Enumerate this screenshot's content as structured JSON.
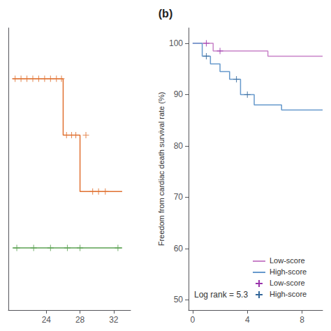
{
  "chart_data": [
    {
      "type": "line",
      "xlim": [
        19.5,
        34
      ],
      "ylim": [
        0.0,
        1.0
      ],
      "xticks": [
        24,
        28,
        32
      ],
      "tick_labels": "x",
      "grid": false,
      "series": [
        {
          "type": "step",
          "color": "#E07030",
          "x": [
            20,
            26,
            26,
            28,
            28,
            33
          ],
          "values": [
            0.82,
            0.82,
            0.62,
            0.62,
            0.42,
            0.42
          ]
        },
        {
          "type": "scatter",
          "marker": "plus",
          "color": "#E07030",
          "x": [
            20.3,
            21.0,
            21.7,
            22.4,
            23.1,
            23.8,
            24.5,
            25.2,
            25.8,
            26.4,
            27.0,
            27.5,
            28.7,
            29.5,
            30.2,
            31.0
          ],
          "values": [
            0.82,
            0.82,
            0.82,
            0.82,
            0.82,
            0.82,
            0.82,
            0.82,
            0.82,
            0.62,
            0.62,
            0.62,
            0.62,
            0.42,
            0.42,
            0.42
          ]
        },
        {
          "type": "line",
          "color": "#5aA050",
          "x": [
            20,
            33
          ],
          "values": [
            0.22,
            0.22
          ]
        },
        {
          "type": "scatter",
          "marker": "plus",
          "color": "#5aA050",
          "x": [
            20.5,
            22.5,
            24.5,
            26.5,
            28.0,
            32.5
          ],
          "values": [
            0.22,
            0.22,
            0.22,
            0.22,
            0.22,
            0.22
          ]
        }
      ]
    },
    {
      "type": "line",
      "title": "(b)",
      "ylabel": "Freedom from cardiac death survival rate (%)",
      "xlim": [
        -0.3,
        9.5
      ],
      "ylim": [
        48,
        103
      ],
      "xticks": [
        0,
        4,
        8
      ],
      "yticks": [
        50,
        60,
        70,
        80,
        90,
        100
      ],
      "grid": false,
      "legend": "lower right",
      "annotations": [
        "Log rank = 5.3"
      ],
      "series": [
        {
          "name": "Low-score",
          "type": "step",
          "color": "#c882c8",
          "x": [
            0,
            0,
            1.5,
            1.5,
            5.5,
            5.5,
            9.5
          ],
          "values": [
            100,
            100,
            100,
            98.5,
            98.5,
            97.5,
            97.5
          ]
        },
        {
          "name": "Low-score",
          "type": "scatter",
          "marker": "plus",
          "color": "#9933aa",
          "x": [
            2.0,
            1.0
          ],
          "values": [
            98.5,
            100
          ]
        },
        {
          "name": "High-score",
          "type": "step",
          "color": "#6699cc",
          "x": [
            0,
            0,
            0.7,
            0.7,
            1.3,
            1.3,
            2.0,
            2.0,
            2.7,
            2.7,
            3.5,
            3.5,
            4.5,
            4.5,
            6.5,
            6.5,
            9.5
          ],
          "values": [
            100,
            100,
            97.5,
            97.5,
            96,
            96,
            94.5,
            94.5,
            93,
            93,
            90,
            90,
            88,
            88,
            87,
            87,
            87
          ]
        },
        {
          "name": "High-score",
          "type": "scatter",
          "marker": "plus",
          "color": "#336699",
          "x": [
            1.0,
            3.2,
            4.0
          ],
          "values": [
            97.5,
            93,
            90
          ]
        }
      ]
    }
  ]
}
